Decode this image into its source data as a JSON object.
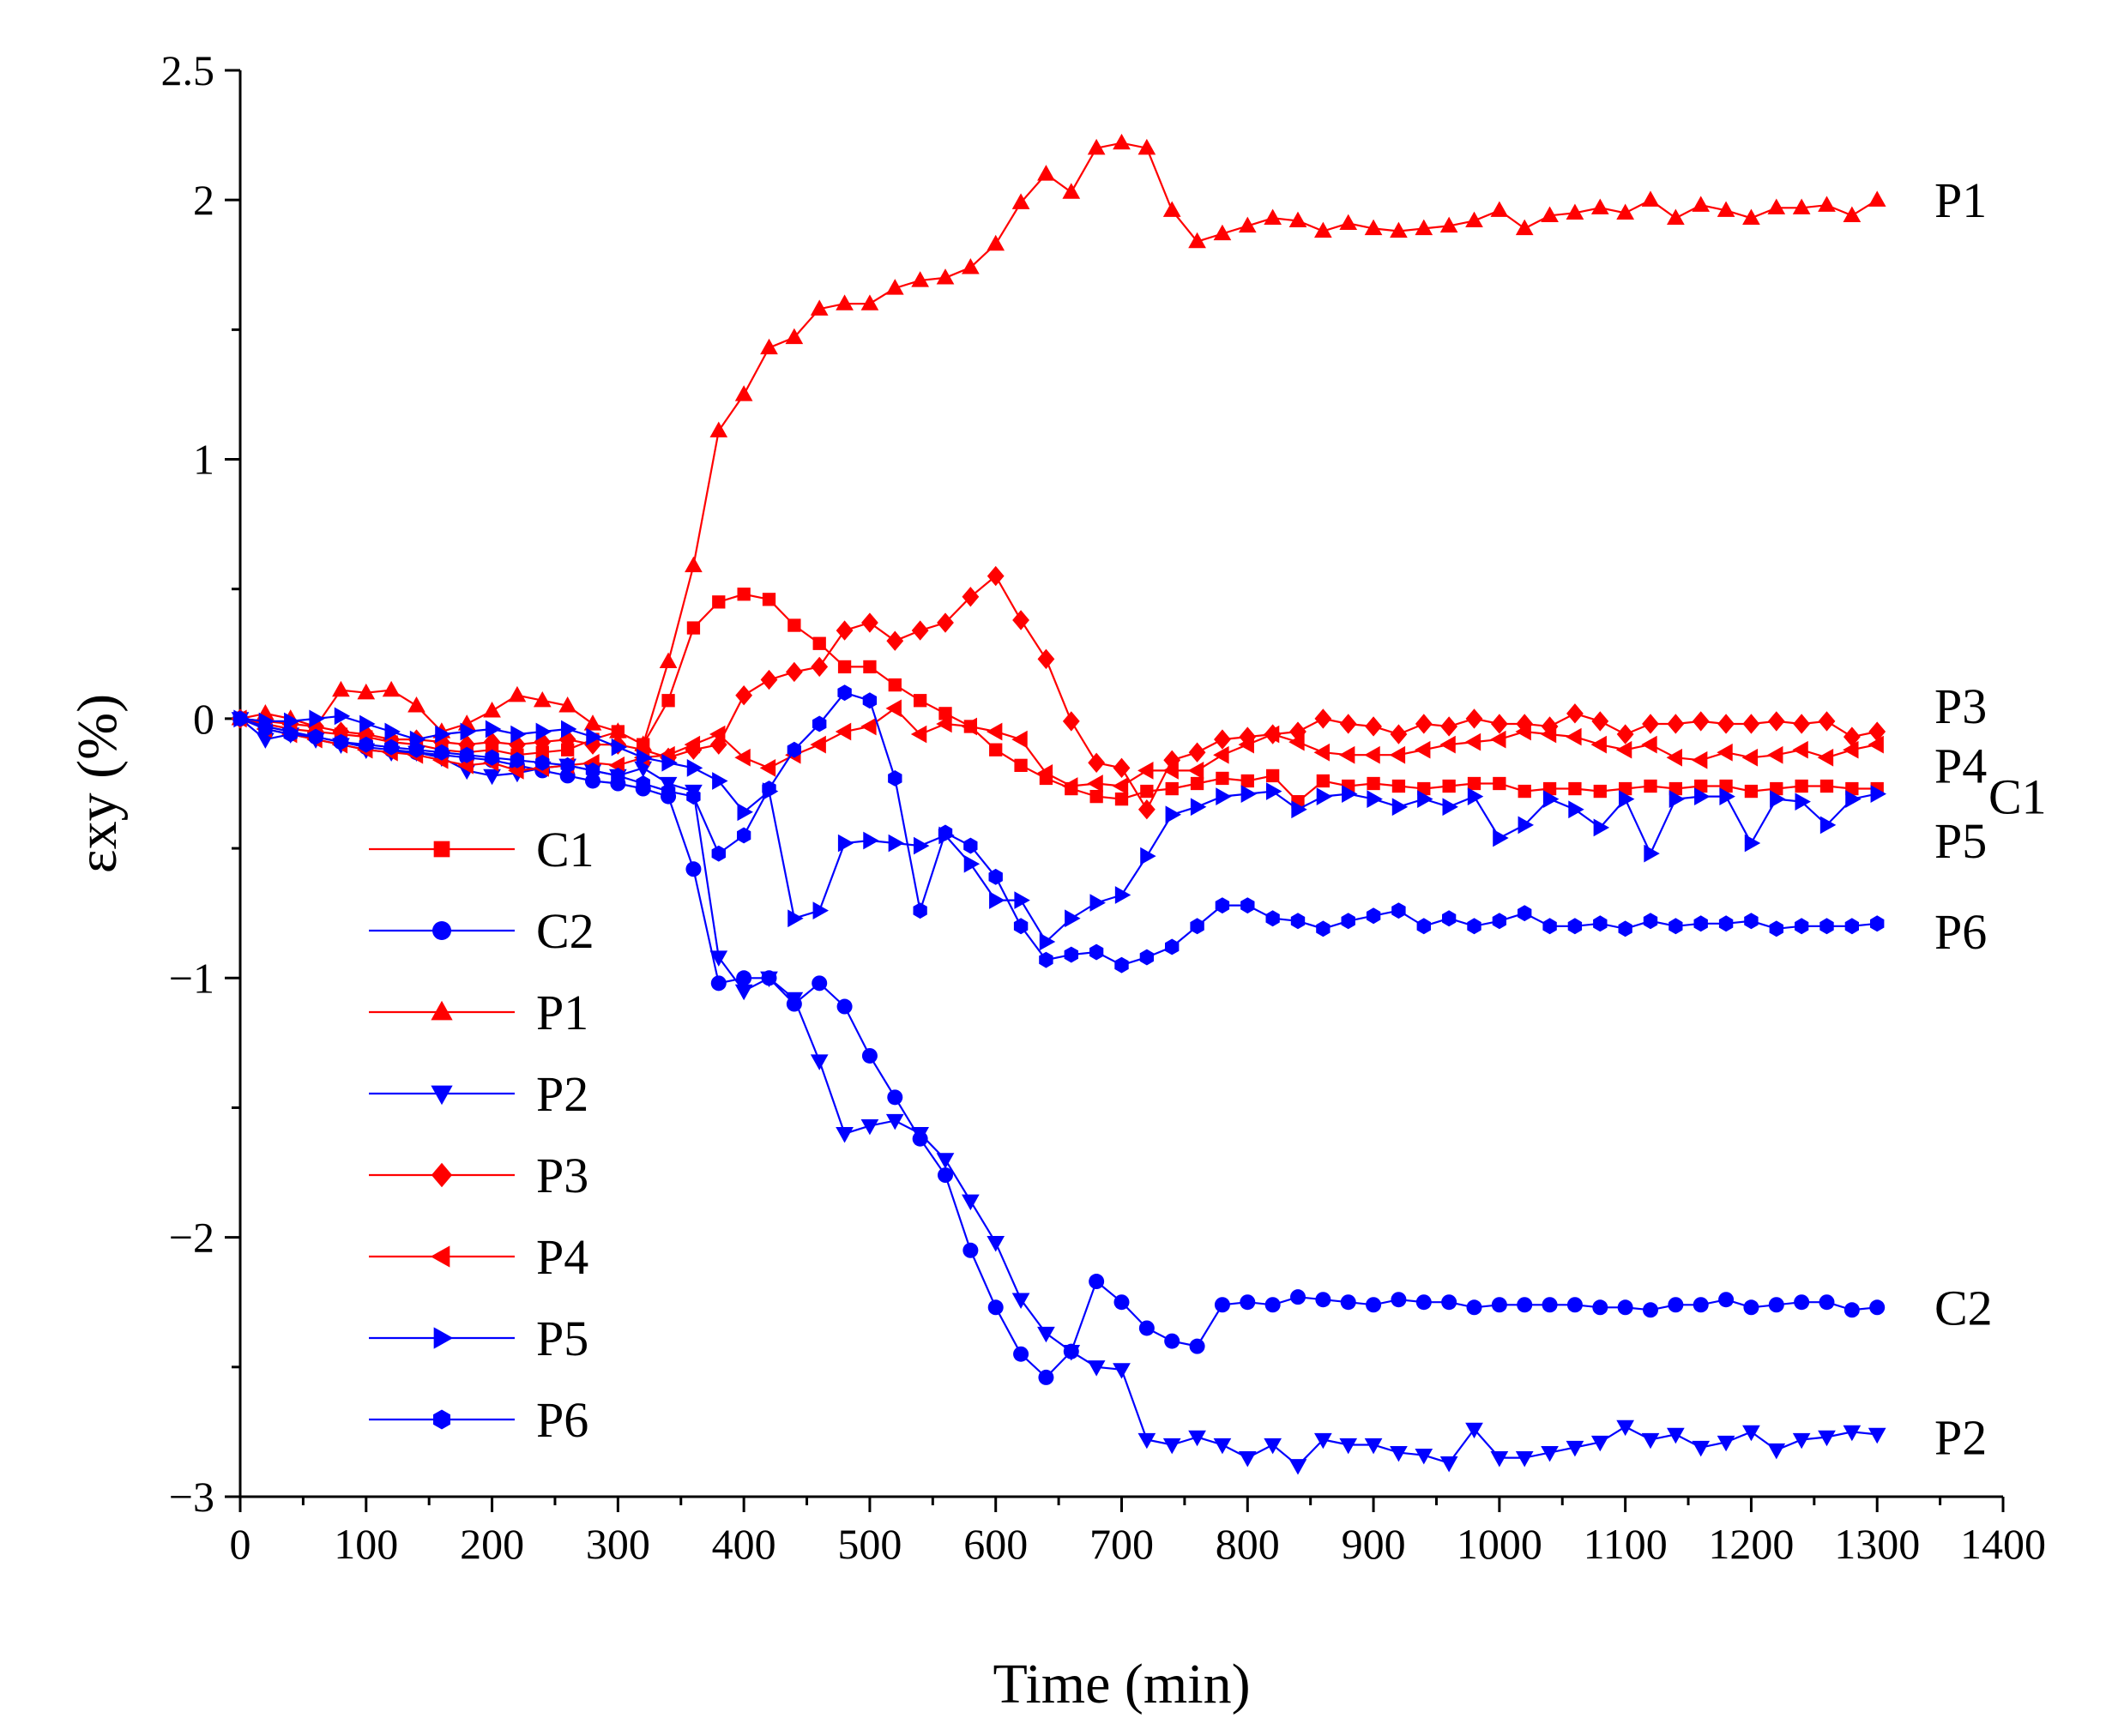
{
  "chart_data": {
    "type": "line",
    "xlabel": "Time (min)",
    "ylabel": "εxy (%)",
    "xlim": [
      0,
      1400
    ],
    "ylim": [
      -3,
      2.5
    ],
    "xticks": [
      "0",
      "100",
      "200",
      "300",
      "400",
      "500",
      "600",
      "700",
      "800",
      "900",
      "1000",
      "1100",
      "1200",
      "1300",
      "1400"
    ],
    "yticks": [
      "2.5",
      "2",
      "1",
      "0",
      "−1",
      "−2",
      "−3"
    ],
    "legend_position": "lower-left",
    "series": [
      {
        "name": "C1",
        "color": "#ff0000",
        "marker": "square",
        "x": [
          0,
          20,
          40,
          60,
          80,
          100,
          120,
          140,
          160,
          180,
          200,
          220,
          240,
          260,
          280,
          300,
          320,
          340,
          360,
          380,
          400,
          420,
          440,
          460,
          480,
          500,
          520,
          540,
          560,
          580,
          600,
          620,
          640,
          660,
          680,
          700,
          720,
          740,
          760,
          780,
          800,
          820,
          840,
          860,
          880,
          900,
          920,
          940,
          960,
          980,
          1000,
          1020,
          1040,
          1060,
          1080,
          1100,
          1120,
          1140,
          1160,
          1180,
          1200,
          1220,
          1240,
          1260,
          1280,
          1300
        ],
        "y": [
          0,
          -0.02,
          -0.04,
          -0.05,
          -0.06,
          -0.07,
          -0.09,
          -0.1,
          -0.12,
          -0.13,
          -0.12,
          -0.14,
          -0.13,
          -0.12,
          -0.08,
          -0.05,
          -0.1,
          0.07,
          0.35,
          0.45,
          0.48,
          0.46,
          0.36,
          0.29,
          0.2,
          0.2,
          0.13,
          0.07,
          0.02,
          -0.03,
          -0.12,
          -0.18,
          -0.23,
          -0.27,
          -0.3,
          -0.31,
          -0.28,
          -0.27,
          -0.25,
          -0.23,
          -0.24,
          -0.22,
          -0.32,
          -0.24,
          -0.26,
          -0.25,
          -0.26,
          -0.27,
          -0.26,
          -0.25,
          -0.25,
          -0.28,
          -0.27,
          -0.27,
          -0.28,
          -0.27,
          -0.26,
          -0.27,
          -0.26,
          -0.26,
          -0.28,
          -0.27,
          -0.26,
          -0.26,
          -0.27,
          -0.27
        ]
      },
      {
        "name": "C2",
        "color": "#0000ff",
        "marker": "circle",
        "x": [
          0,
          20,
          40,
          60,
          80,
          100,
          120,
          140,
          160,
          180,
          200,
          220,
          240,
          260,
          280,
          300,
          320,
          340,
          360,
          380,
          400,
          420,
          440,
          460,
          480,
          500,
          520,
          540,
          560,
          580,
          600,
          620,
          640,
          660,
          680,
          700,
          720,
          740,
          760,
          780,
          800,
          820,
          840,
          860,
          880,
          900,
          920,
          940,
          960,
          980,
          1000,
          1020,
          1040,
          1060,
          1080,
          1100,
          1120,
          1140,
          1160,
          1180,
          1200,
          1220,
          1240,
          1260,
          1280,
          1300
        ],
        "y": [
          0,
          -0.03,
          -0.05,
          -0.07,
          -0.09,
          -0.11,
          -0.12,
          -0.13,
          -0.14,
          -0.15,
          -0.16,
          -0.18,
          -0.2,
          -0.22,
          -0.24,
          -0.25,
          -0.27,
          -0.3,
          -0.58,
          -1.02,
          -1.0,
          -1.0,
          -1.1,
          -1.02,
          -1.11,
          -1.3,
          -1.46,
          -1.62,
          -1.76,
          -2.05,
          -2.27,
          -2.45,
          -2.54,
          -2.44,
          -2.17,
          -2.25,
          -2.35,
          -2.4,
          -2.42,
          -2.26,
          -2.25,
          -2.26,
          -2.23,
          -2.24,
          -2.25,
          -2.26,
          -2.24,
          -2.25,
          -2.25,
          -2.27,
          -2.26,
          -2.26,
          -2.26,
          -2.26,
          -2.27,
          -2.27,
          -2.28,
          -2.26,
          -2.26,
          -2.24,
          -2.27,
          -2.26,
          -2.25,
          -2.25,
          -2.28,
          -2.27
        ]
      },
      {
        "name": "P1",
        "color": "#ff0000",
        "marker": "triangle-up",
        "x": [
          0,
          20,
          40,
          60,
          80,
          100,
          120,
          140,
          160,
          180,
          200,
          220,
          240,
          260,
          280,
          300,
          320,
          340,
          360,
          380,
          400,
          420,
          440,
          460,
          480,
          500,
          520,
          540,
          560,
          580,
          600,
          620,
          640,
          660,
          680,
          700,
          720,
          740,
          760,
          780,
          800,
          820,
          840,
          860,
          880,
          900,
          920,
          940,
          960,
          980,
          1000,
          1020,
          1040,
          1060,
          1080,
          1100,
          1120,
          1140,
          1160,
          1180,
          1200,
          1220,
          1240,
          1260,
          1280,
          1300
        ],
        "y": [
          0,
          0.02,
          0.0,
          -0.03,
          0.11,
          0.1,
          0.11,
          0.05,
          -0.05,
          -0.02,
          0.03,
          0.09,
          0.07,
          0.05,
          -0.02,
          -0.05,
          -0.1,
          0.22,
          0.59,
          1.11,
          1.25,
          1.43,
          1.47,
          1.58,
          1.6,
          1.6,
          1.66,
          1.69,
          1.7,
          1.74,
          1.83,
          1.99,
          2.1,
          2.03,
          2.2,
          2.22,
          2.2,
          1.96,
          1.84,
          1.87,
          1.9,
          1.93,
          1.92,
          1.88,
          1.91,
          1.89,
          1.88,
          1.89,
          1.9,
          1.92,
          1.96,
          1.89,
          1.94,
          1.95,
          1.97,
          1.95,
          2.0,
          1.93,
          1.98,
          1.96,
          1.93,
          1.97,
          1.97,
          1.98,
          1.94,
          2.0
        ]
      },
      {
        "name": "P2",
        "color": "#0000ff",
        "marker": "triangle-down",
        "x": [
          0,
          20,
          40,
          60,
          80,
          100,
          120,
          140,
          160,
          180,
          200,
          220,
          240,
          260,
          280,
          300,
          320,
          340,
          360,
          380,
          400,
          420,
          440,
          460,
          480,
          500,
          520,
          540,
          560,
          580,
          600,
          620,
          640,
          660,
          680,
          700,
          720,
          740,
          760,
          780,
          800,
          820,
          840,
          860,
          880,
          900,
          920,
          940,
          960,
          980,
          1000,
          1020,
          1040,
          1060,
          1080,
          1100,
          1120,
          1140,
          1160,
          1180,
          1200,
          1220,
          1240,
          1260,
          1280,
          1300
        ],
        "y": [
          0,
          -0.08,
          -0.06,
          -0.08,
          -0.1,
          -0.12,
          -0.13,
          -0.13,
          -0.15,
          -0.2,
          -0.22,
          -0.21,
          -0.19,
          -0.18,
          -0.2,
          -0.22,
          -0.19,
          -0.25,
          -0.28,
          -0.92,
          -1.05,
          -1.0,
          -1.08,
          -1.32,
          -1.6,
          -1.57,
          -1.55,
          -1.6,
          -1.7,
          -1.86,
          -2.02,
          -2.24,
          -2.37,
          -2.44,
          -2.5,
          -2.51,
          -2.78,
          -2.8,
          -2.77,
          -2.8,
          -2.85,
          -2.8,
          -2.88,
          -2.78,
          -2.8,
          -2.8,
          -2.83,
          -2.84,
          -2.87,
          -2.74,
          -2.85,
          -2.85,
          -2.83,
          -2.81,
          -2.79,
          -2.73,
          -2.78,
          -2.76,
          -2.81,
          -2.79,
          -2.75,
          -2.82,
          -2.78,
          -2.77,
          -2.75,
          -2.76
        ]
      },
      {
        "name": "P3",
        "color": "#ff0000",
        "marker": "diamond",
        "x": [
          0,
          20,
          40,
          60,
          80,
          100,
          120,
          140,
          160,
          180,
          200,
          220,
          240,
          260,
          280,
          300,
          320,
          340,
          360,
          380,
          400,
          420,
          440,
          460,
          480,
          500,
          520,
          540,
          560,
          580,
          600,
          620,
          640,
          660,
          680,
          700,
          720,
          740,
          760,
          780,
          800,
          820,
          840,
          860,
          880,
          900,
          920,
          940,
          960,
          980,
          1000,
          1020,
          1040,
          1060,
          1080,
          1100,
          1120,
          1140,
          1160,
          1180,
          1200,
          1220,
          1240,
          1260,
          1280,
          1300
        ],
        "y": [
          0,
          -0.01,
          -0.02,
          -0.03,
          -0.05,
          -0.06,
          -0.08,
          -0.08,
          -0.09,
          -0.1,
          -0.09,
          -0.1,
          -0.09,
          -0.08,
          -0.1,
          -0.1,
          -0.12,
          -0.15,
          -0.12,
          -0.1,
          0.09,
          0.15,
          0.18,
          0.2,
          0.34,
          0.37,
          0.3,
          0.34,
          0.37,
          0.47,
          0.55,
          0.38,
          0.23,
          -0.01,
          -0.17,
          -0.19,
          -0.35,
          -0.16,
          -0.13,
          -0.08,
          -0.07,
          -0.06,
          -0.05,
          0.0,
          -0.02,
          -0.03,
          -0.06,
          -0.02,
          -0.03,
          0.0,
          -0.02,
          -0.02,
          -0.03,
          0.02,
          -0.01,
          -0.06,
          -0.02,
          -0.02,
          -0.01,
          -0.02,
          -0.02,
          -0.01,
          -0.02,
          -0.01,
          -0.07,
          -0.05
        ]
      },
      {
        "name": "P4",
        "color": "#ff0000",
        "marker": "triangle-left",
        "x": [
          0,
          20,
          40,
          60,
          80,
          100,
          120,
          140,
          160,
          180,
          200,
          220,
          240,
          260,
          280,
          300,
          320,
          340,
          360,
          380,
          400,
          420,
          440,
          460,
          480,
          500,
          520,
          540,
          560,
          580,
          600,
          620,
          640,
          660,
          680,
          700,
          720,
          740,
          760,
          780,
          800,
          820,
          840,
          860,
          880,
          900,
          920,
          940,
          960,
          980,
          1000,
          1020,
          1040,
          1060,
          1080,
          1100,
          1120,
          1140,
          1160,
          1180,
          1200,
          1220,
          1240,
          1260,
          1280,
          1300
        ],
        "y": [
          0,
          -0.04,
          -0.06,
          -0.08,
          -0.1,
          -0.12,
          -0.13,
          -0.14,
          -0.16,
          -0.18,
          -0.17,
          -0.2,
          -0.19,
          -0.18,
          -0.17,
          -0.18,
          -0.15,
          -0.14,
          -0.1,
          -0.06,
          -0.15,
          -0.19,
          -0.14,
          -0.1,
          -0.05,
          -0.03,
          0.04,
          -0.06,
          -0.02,
          -0.03,
          -0.05,
          -0.08,
          -0.21,
          -0.26,
          -0.25,
          -0.26,
          -0.2,
          -0.2,
          -0.2,
          -0.14,
          -0.1,
          -0.06,
          -0.09,
          -0.13,
          -0.14,
          -0.14,
          -0.14,
          -0.12,
          -0.1,
          -0.09,
          -0.08,
          -0.05,
          -0.06,
          -0.07,
          -0.1,
          -0.12,
          -0.1,
          -0.15,
          -0.16,
          -0.13,
          -0.15,
          -0.14,
          -0.12,
          -0.15,
          -0.12,
          -0.1
        ]
      },
      {
        "name": "P5",
        "color": "#0000ff",
        "marker": "triangle-right",
        "x": [
          0,
          20,
          40,
          60,
          80,
          100,
          120,
          140,
          160,
          180,
          200,
          220,
          240,
          260,
          280,
          300,
          320,
          340,
          360,
          380,
          400,
          420,
          440,
          460,
          480,
          500,
          520,
          540,
          560,
          580,
          600,
          620,
          640,
          660,
          680,
          700,
          720,
          740,
          760,
          780,
          800,
          820,
          840,
          860,
          880,
          900,
          920,
          940,
          960,
          980,
          1000,
          1020,
          1040,
          1060,
          1080,
          1100,
          1120,
          1140,
          1160,
          1180,
          1200,
          1220,
          1240,
          1260,
          1280,
          1300
        ],
        "y": [
          0,
          -0.01,
          -0.01,
          0.0,
          0.01,
          -0.02,
          -0.05,
          -0.08,
          -0.06,
          -0.05,
          -0.04,
          -0.06,
          -0.05,
          -0.04,
          -0.07,
          -0.11,
          -0.15,
          -0.17,
          -0.19,
          -0.24,
          -0.36,
          -0.28,
          -0.77,
          -0.74,
          -0.48,
          -0.47,
          -0.48,
          -0.49,
          -0.45,
          -0.56,
          -0.7,
          -0.7,
          -0.86,
          -0.77,
          -0.71,
          -0.68,
          -0.53,
          -0.37,
          -0.34,
          -0.3,
          -0.29,
          -0.28,
          -0.35,
          -0.3,
          -0.29,
          -0.31,
          -0.34,
          -0.31,
          -0.34,
          -0.3,
          -0.46,
          -0.41,
          -0.31,
          -0.35,
          -0.42,
          -0.31,
          -0.52,
          -0.31,
          -0.3,
          -0.3,
          -0.48,
          -0.31,
          -0.32,
          -0.41,
          -0.31,
          -0.29
        ]
      },
      {
        "name": "P6",
        "color": "#0000ff",
        "marker": "hexagon",
        "x": [
          0,
          20,
          40,
          60,
          80,
          100,
          120,
          140,
          160,
          180,
          200,
          220,
          240,
          260,
          280,
          300,
          320,
          340,
          360,
          380,
          400,
          420,
          440,
          460,
          480,
          500,
          520,
          540,
          560,
          580,
          600,
          620,
          640,
          660,
          680,
          700,
          720,
          740,
          760,
          780,
          800,
          820,
          840,
          860,
          880,
          900,
          920,
          940,
          960,
          980,
          1000,
          1020,
          1040,
          1060,
          1080,
          1100,
          1120,
          1140,
          1160,
          1180,
          1200,
          1220,
          1240,
          1260,
          1280,
          1300
        ],
        "y": [
          0,
          -0.04,
          -0.06,
          -0.07,
          -0.09,
          -0.1,
          -0.11,
          -0.12,
          -0.13,
          -0.14,
          -0.15,
          -0.16,
          -0.17,
          -0.18,
          -0.2,
          -0.22,
          -0.25,
          -0.28,
          -0.3,
          -0.52,
          -0.45,
          -0.27,
          -0.12,
          -0.02,
          0.1,
          0.07,
          -0.23,
          -0.74,
          -0.44,
          -0.49,
          -0.61,
          -0.8,
          -0.93,
          -0.91,
          -0.9,
          -0.95,
          -0.92,
          -0.88,
          -0.8,
          -0.72,
          -0.72,
          -0.77,
          -0.78,
          -0.81,
          -0.78,
          -0.76,
          -0.74,
          -0.8,
          -0.77,
          -0.8,
          -0.78,
          -0.75,
          -0.8,
          -0.8,
          -0.79,
          -0.81,
          -0.78,
          -0.8,
          -0.79,
          -0.79,
          -0.78,
          -0.81,
          -0.8,
          -0.8,
          -0.8,
          -0.79
        ]
      }
    ],
    "end_labels": [
      {
        "text": "P1",
        "series": "P1"
      },
      {
        "text": "P3",
        "series": "P3"
      },
      {
        "text": "P4",
        "series": "P4"
      },
      {
        "text": "C1",
        "series": "C1"
      },
      {
        "text": "P5",
        "series": "P5"
      },
      {
        "text": "P6",
        "series": "P6"
      },
      {
        "text": "C2",
        "series": "C2"
      },
      {
        "text": "P2",
        "series": "P2"
      }
    ]
  }
}
